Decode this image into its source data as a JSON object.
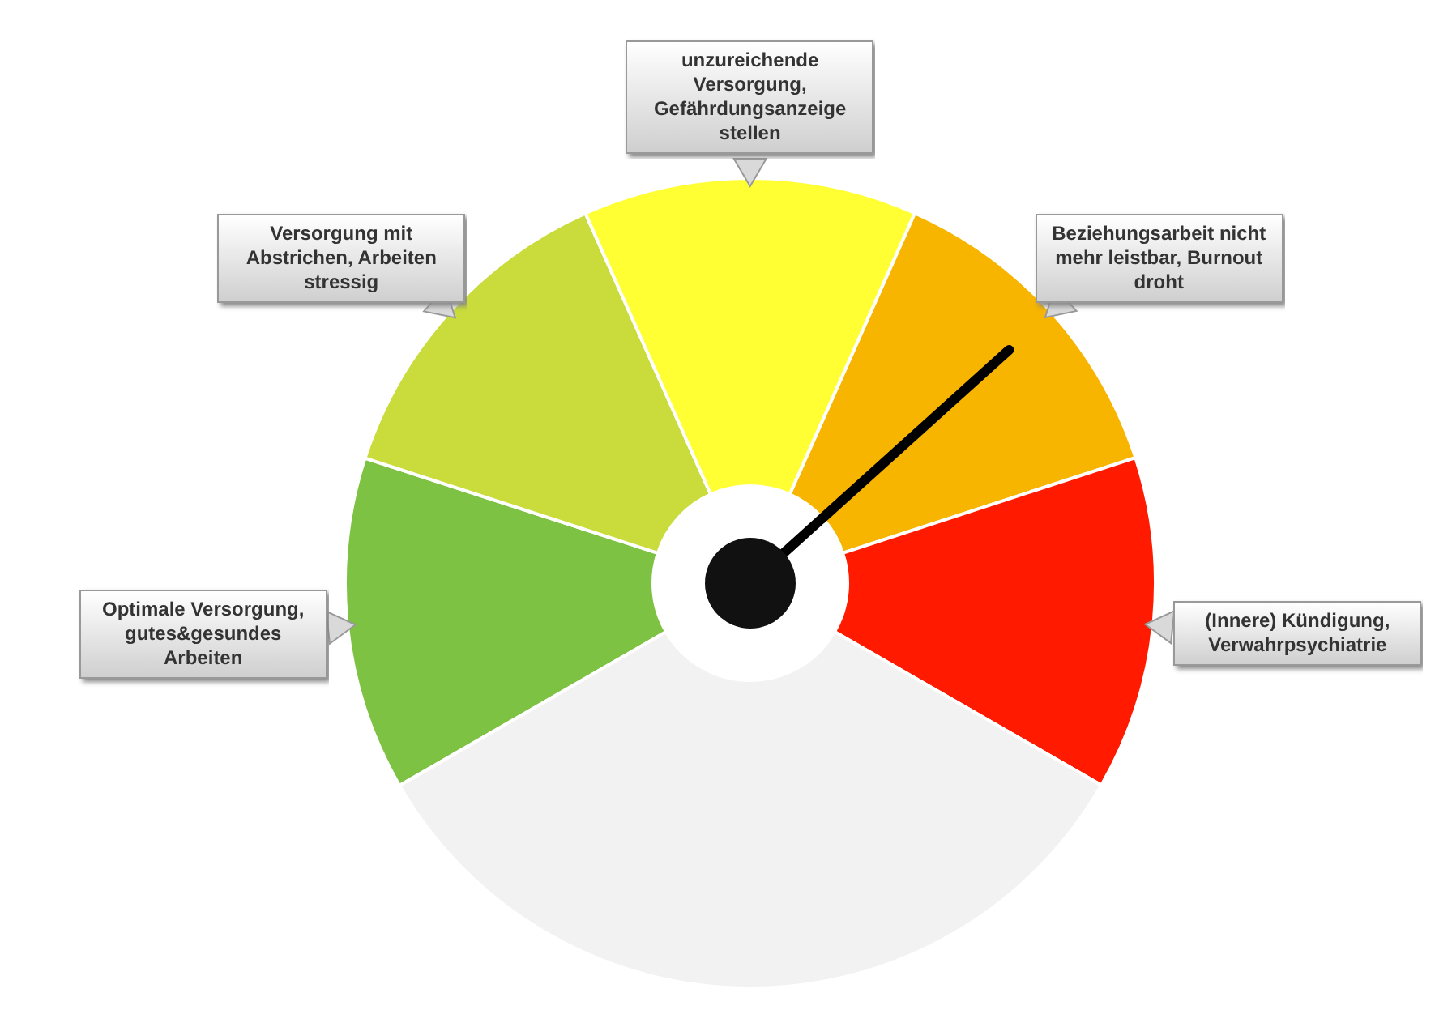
{
  "chart_data": {
    "type": "donut",
    "categories": [
      "Optimale Versorgung, gutes&gesundes Arbeiten",
      "Versorgung mit Abstrichen, Arbeiten stressig",
      "unzureichende Versorgung, Gefährdungsanzeige stellen",
      "Beziehungsarbeit nicht mehr leistbar, Burnout droht",
      "(Innere) Kündigung, Verwahrpsychiatrie",
      null
    ],
    "values": [
      13.33,
      13.33,
      13.33,
      13.33,
      13.33,
      33.35
    ],
    "colors": [
      "#7dc242",
      "#c9dc3b",
      "#ffff33",
      "#f7b500",
      "#ff1a00",
      "#f2f2f2"
    ],
    "needle": "Beziehungsarbeit nicht mehr leistbar, Burnout droht",
    "legend": false
  }
}
